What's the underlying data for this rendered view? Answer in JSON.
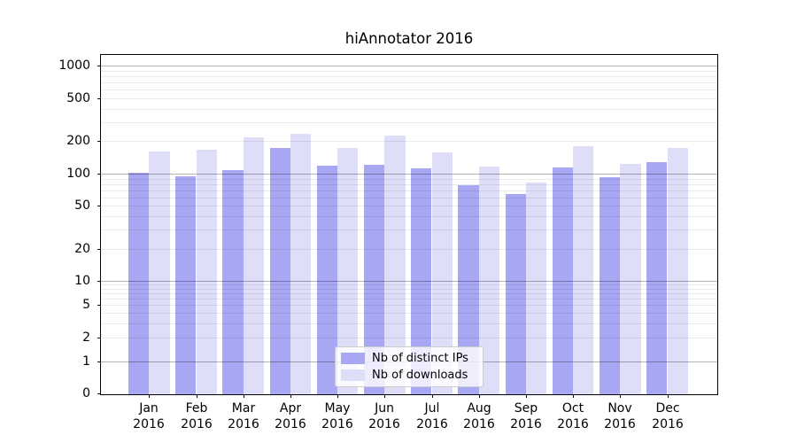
{
  "figure": {
    "background_color": "#ffffff",
    "title": "hiAnnotator 2016"
  },
  "chart_data": {
    "type": "bar",
    "title": "hiAnnotator 2016",
    "categories": [
      "Jan 2016",
      "Feb 2016",
      "Mar 2016",
      "Apr 2016",
      "May 2016",
      "Jun 2016",
      "Jul 2016",
      "Aug 2016",
      "Sep 2016",
      "Oct 2016",
      "Nov 2016",
      "Dec 2016"
    ],
    "series": [
      {
        "name": "Nb of distinct IPs",
        "color": "#a7a7f3",
        "values": [
          102,
          94,
          108,
          172,
          119,
          121,
          112,
          78,
          65,
          115,
          93,
          128
        ]
      },
      {
        "name": "Nb of downloads",
        "color": "#dedef8",
        "values": [
          160,
          165,
          215,
          235,
          174,
          224,
          158,
          116,
          83,
          181,
          122,
          174
        ]
      }
    ],
    "xlabel": "",
    "ylabel": "",
    "yscale": "symlog",
    "yticks": [
      0,
      1,
      2,
      5,
      10,
      20,
      50,
      100,
      200,
      500,
      1000
    ],
    "ylim": [
      0,
      1250
    ],
    "grid": true,
    "grid_major": [
      1,
      10,
      100,
      1000
    ],
    "legend_position": "lower center",
    "colors": {
      "major_gridline": "rgba(0,0,0,0.30)",
      "minor_gridline": "rgba(0,0,0,0.08)",
      "axis": "#000000"
    }
  }
}
